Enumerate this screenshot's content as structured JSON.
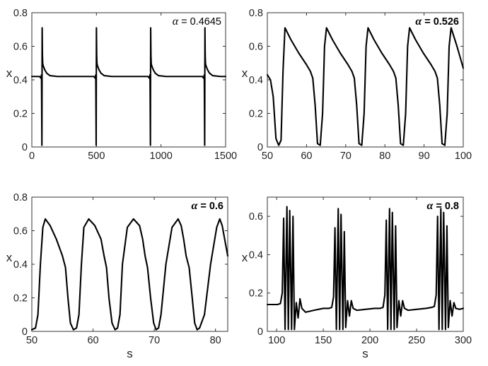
{
  "chart_data": [
    {
      "type": "line",
      "annotation_symbol": "α",
      "annotation_value": " = 0.4645",
      "annotation_bold": false,
      "xlabel": "",
      "ylabel": "x",
      "xlim": [
        0,
        1500
      ],
      "ylim": [
        0,
        0.8
      ],
      "xticks": [
        0,
        500,
        1000,
        1500
      ],
      "yticks": [
        0,
        0.2,
        0.4,
        0.6,
        0.8
      ],
      "xtick_labels": [
        "0",
        "500",
        "1000",
        "1500"
      ],
      "ytick_labels": [
        "0",
        "0.2",
        "0.4",
        "0.6",
        "0.8"
      ],
      "grid": false,
      "series": [
        {
          "x": [
            0,
            60,
            70,
            75,
            78,
            80,
            82,
            84,
            86,
            90,
            100,
            115,
            140,
            200,
            480,
            490,
            495,
            498,
            500,
            502,
            504,
            506,
            510,
            520,
            535,
            560,
            620,
            900,
            910,
            915,
            918,
            920,
            922,
            924,
            926,
            930,
            940,
            955,
            980,
            1040,
            1320,
            1330,
            1335,
            1338,
            1340,
            1342,
            1344,
            1346,
            1350,
            1360,
            1375,
            1400,
            1460,
            1500
          ],
          "y": [
            0.42,
            0.42,
            0.41,
            0.43,
            0.01,
            0.71,
            0.55,
            0.5,
            0.49,
            0.48,
            0.46,
            0.44,
            0.425,
            0.42,
            0.42,
            0.41,
            0.43,
            0.01,
            0.71,
            0.55,
            0.5,
            0.49,
            0.48,
            0.46,
            0.44,
            0.425,
            0.42,
            0.42,
            0.41,
            0.43,
            0.01,
            0.71,
            0.55,
            0.5,
            0.49,
            0.48,
            0.46,
            0.44,
            0.425,
            0.42,
            0.42,
            0.41,
            0.43,
            0.01,
            0.71,
            0.55,
            0.5,
            0.49,
            0.48,
            0.46,
            0.44,
            0.425,
            0.42,
            0.42
          ]
        }
      ]
    },
    {
      "type": "line",
      "annotation_symbol": "α",
      "annotation_value": " = 0.526",
      "annotation_bold": true,
      "xlabel": "",
      "ylabel": "x",
      "xlim": [
        50,
        100
      ],
      "ylim": [
        0,
        0.8
      ],
      "xticks": [
        50,
        60,
        70,
        80,
        90,
        100
      ],
      "yticks": [
        0,
        0.2,
        0.4,
        0.6,
        0.8
      ],
      "xtick_labels": [
        "50",
        "60",
        "70",
        "80",
        "90",
        "100"
      ],
      "ytick_labels": [
        "0",
        "0.2",
        "0.4",
        "0.6",
        "0.8"
      ],
      "grid": false,
      "series": [
        {
          "x": [
            50,
            50.8,
            51.5,
            52.2,
            52.9,
            53.5,
            54.0,
            54.5,
            56.0,
            58.0,
            60.0,
            61.0,
            61.6,
            62.2,
            62.8,
            63.5,
            64.1,
            64.6,
            65.1,
            66.6,
            68.6,
            70.6,
            71.6,
            72.2,
            72.8,
            73.4,
            74.1,
            74.7,
            75.2,
            75.7,
            77.2,
            79.2,
            81.2,
            82.2,
            82.8,
            83.4,
            84.0,
            84.7,
            85.3,
            85.8,
            86.3,
            87.8,
            89.8,
            91.8,
            92.8,
            93.4,
            94.0,
            94.6,
            95.3,
            95.9,
            96.4,
            96.9,
            98.4,
            100.0
          ],
          "y": [
            0.43,
            0.4,
            0.3,
            0.05,
            0.01,
            0.04,
            0.45,
            0.71,
            0.64,
            0.56,
            0.49,
            0.45,
            0.41,
            0.25,
            0.02,
            0.01,
            0.2,
            0.6,
            0.71,
            0.64,
            0.56,
            0.49,
            0.45,
            0.41,
            0.25,
            0.02,
            0.01,
            0.2,
            0.6,
            0.71,
            0.64,
            0.56,
            0.49,
            0.45,
            0.41,
            0.25,
            0.02,
            0.01,
            0.2,
            0.6,
            0.71,
            0.64,
            0.56,
            0.49,
            0.45,
            0.41,
            0.25,
            0.02,
            0.01,
            0.2,
            0.6,
            0.71,
            0.6,
            0.47
          ]
        }
      ]
    },
    {
      "type": "line",
      "annotation_symbol": "α",
      "annotation_value": " = 0.6",
      "annotation_bold": true,
      "xlabel": "s",
      "ylabel": "x",
      "xlim": [
        50,
        82
      ],
      "ylim": [
        0,
        0.8
      ],
      "xticks": [
        50,
        60,
        70,
        80
      ],
      "yticks": [
        0,
        0.2,
        0.4,
        0.6,
        0.8
      ],
      "xtick_labels": [
        "50",
        "60",
        "70",
        "80"
      ],
      "ytick_labels": [
        "0",
        "0.2",
        "0.4",
        "0.6",
        "0.8"
      ],
      "grid": false,
      "series": [
        {
          "x": [
            50,
            50.6,
            51.0,
            51.4,
            51.8,
            52.2,
            53.0,
            54.0,
            55.0,
            55.5,
            55.9,
            56.3,
            56.8,
            57.3,
            57.7,
            58.1,
            58.5,
            59.3,
            60.3,
            61.3,
            61.8,
            62.2,
            62.6,
            63.1,
            63.6,
            64.0,
            64.4,
            64.8,
            65.6,
            66.6,
            67.6,
            68.1,
            68.5,
            68.9,
            69.4,
            69.9,
            70.3,
            70.7,
            71.1,
            71.9,
            72.9,
            73.9,
            74.4,
            74.8,
            75.2,
            75.7,
            76.2,
            76.6,
            77.0,
            77.4,
            78.2,
            79.2,
            80.2,
            80.7,
            81.1,
            81.5,
            82.0
          ],
          "y": [
            0.01,
            0.02,
            0.1,
            0.4,
            0.62,
            0.67,
            0.63,
            0.55,
            0.45,
            0.38,
            0.2,
            0.05,
            0.01,
            0.02,
            0.1,
            0.4,
            0.62,
            0.67,
            0.63,
            0.55,
            0.45,
            0.38,
            0.2,
            0.05,
            0.01,
            0.02,
            0.1,
            0.4,
            0.62,
            0.67,
            0.63,
            0.55,
            0.45,
            0.38,
            0.2,
            0.05,
            0.01,
            0.02,
            0.1,
            0.4,
            0.62,
            0.67,
            0.63,
            0.55,
            0.45,
            0.38,
            0.2,
            0.05,
            0.01,
            0.02,
            0.1,
            0.4,
            0.62,
            0.67,
            0.63,
            0.55,
            0.45
          ]
        }
      ]
    },
    {
      "type": "line",
      "annotation_symbol": "α",
      "annotation_value": " = 0.8",
      "annotation_bold": true,
      "xlabel": "s",
      "ylabel": "x",
      "xlim": [
        90,
        300
      ],
      "ylim": [
        0,
        0.7
      ],
      "xticks": [
        100,
        150,
        200,
        250,
        300
      ],
      "yticks": [
        0,
        0.2,
        0.4,
        0.6
      ],
      "xtick_labels": [
        "100",
        "150",
        "200",
        "250",
        "300"
      ],
      "ytick_labels": [
        "0",
        "0.2",
        "0.4",
        "0.6"
      ],
      "grid": false,
      "series": [
        {
          "x": [
            90,
            96,
            101,
            104,
            106,
            107.5,
            109,
            111,
            112.5,
            114,
            116,
            117.5,
            119,
            121,
            123,
            125,
            127,
            131,
            140,
            150,
            156,
            159,
            161,
            162.5,
            164,
            166,
            167.5,
            169,
            171,
            172.5,
            174,
            176,
            178,
            180,
            182,
            186,
            195,
            205,
            211,
            214,
            216,
            217.5,
            219,
            221,
            222.5,
            224,
            226,
            227.5,
            229,
            231,
            233,
            235,
            237,
            241,
            250,
            260,
            266,
            269,
            271,
            272.5,
            274,
            276,
            277.5,
            279,
            281,
            282.5,
            284,
            286,
            288,
            290,
            292,
            296,
            300
          ],
          "y": [
            0.14,
            0.14,
            0.14,
            0.145,
            0.2,
            0.59,
            0.01,
            0.65,
            0.01,
            0.63,
            0.01,
            0.6,
            0.01,
            0.15,
            0.07,
            0.17,
            0.12,
            0.1,
            0.11,
            0.12,
            0.12,
            0.125,
            0.18,
            0.54,
            0.01,
            0.64,
            0.01,
            0.61,
            0.01,
            0.52,
            0.02,
            0.16,
            0.08,
            0.16,
            0.12,
            0.11,
            0.115,
            0.12,
            0.12,
            0.125,
            0.19,
            0.58,
            0.01,
            0.64,
            0.01,
            0.62,
            0.01,
            0.55,
            0.02,
            0.16,
            0.08,
            0.16,
            0.12,
            0.11,
            0.115,
            0.12,
            0.125,
            0.13,
            0.19,
            0.6,
            0.01,
            0.64,
            0.01,
            0.62,
            0.01,
            0.55,
            0.02,
            0.16,
            0.08,
            0.15,
            0.12,
            0.115,
            0.12
          ]
        }
      ]
    }
  ]
}
